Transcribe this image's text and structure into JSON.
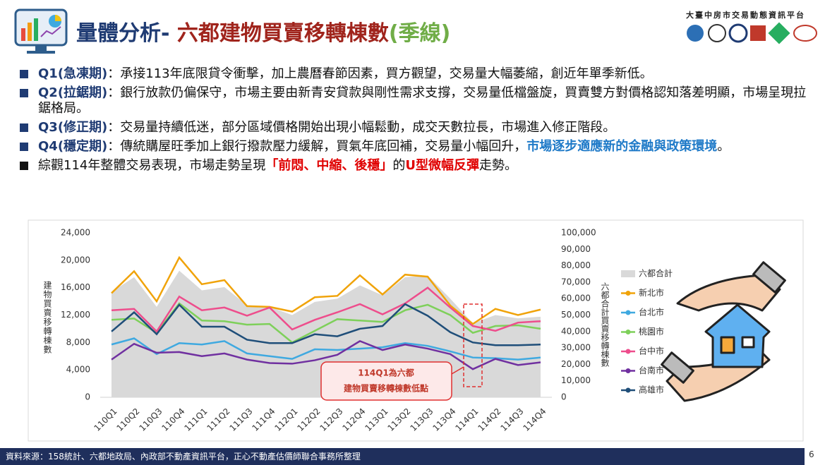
{
  "header": {
    "title_parts": [
      {
        "text": "量體分析- ",
        "color": "#1f3b73"
      },
      {
        "text": "六都建物買賣移轉棟數",
        "color": "#a0241c"
      },
      {
        "text": "(季線)",
        "color": "#70ad47"
      }
    ],
    "platform": "大臺中房市交易動態資訊平台"
  },
  "bullets": [
    {
      "segments": [
        {
          "text": "Q1(急凍期)",
          "style": "label"
        },
        {
          "text": "：承接113年底限貸令衝擊，加上農曆春節因素，買方觀望，交易量大幅萎縮，創近年單季新低。",
          "style": "plain"
        }
      ]
    },
    {
      "segments": [
        {
          "text": "Q2(拉鋸期)",
          "style": "label"
        },
        {
          "text": "：銀行放款仍偏保守，市場主要由新青安貸款與剛性需求支撐，交易量低檔盤旋，買賣雙方對價格認知落差明顯，市場呈現拉鋸格局。",
          "style": "plain"
        }
      ]
    },
    {
      "segments": [
        {
          "text": "Q3(修正期)",
          "style": "label"
        },
        {
          "text": "：交易量持續低迷，部分區域價格開始出現小幅鬆動，成交天數拉長，市場進入修正階段。",
          "style": "plain"
        }
      ]
    },
    {
      "segments": [
        {
          "text": "Q4(穩定期)",
          "style": "label"
        },
        {
          "text": "：傳統購屋旺季加上銀行撥款壓力緩解，買氣年底回補，交易量小幅回升，",
          "style": "plain"
        },
        {
          "text": "市場逐步適應新的金融與政策環境",
          "style": "blue"
        },
        {
          "text": "。",
          "style": "plain"
        }
      ]
    },
    {
      "segments": [
        {
          "text": "綜觀114年整體交易表現，市場走勢呈現",
          "style": "plain"
        },
        {
          "text": "「前悶、中縮、後穩」",
          "style": "red"
        },
        {
          "text": "的",
          "style": "plain"
        },
        {
          "text": "U型微幅反彈",
          "style": "red"
        },
        {
          "text": "走勢。",
          "style": "plain"
        }
      ]
    }
  ],
  "footer": {
    "source": "資料來源：158統計、六都地政局、內政部不動產資訊平台，正心不動產估價師聯合事務所整理",
    "page": 6
  },
  "chart_data": {
    "type": "line",
    "categories": [
      "110Q1",
      "110Q2",
      "110Q3",
      "110Q4",
      "111Q1",
      "111Q2",
      "111Q3",
      "111Q4",
      "112Q1",
      "112Q2",
      "112Q3",
      "112Q4",
      "113Q1",
      "113Q2",
      "113Q3",
      "113Q4",
      "114Q1",
      "114Q2",
      "114Q3",
      "114Q4"
    ],
    "ylabel": "建物買賣移轉棟數",
    "y2label": "六都合計買賣移轉棟數",
    "ylim": [
      0,
      24000
    ],
    "yticks": [
      0,
      {
        "value": 4000,
        "label": "4,000"
      },
      {
        "value": 8000,
        "label": "8,000"
      },
      {
        "value": 12000,
        "label": "12,000"
      },
      {
        "value": 16000,
        "label": "16,000"
      },
      {
        "value": 20000,
        "label": "20,000"
      },
      {
        "value": 24000,
        "label": "24,000"
      }
    ],
    "y2lim": [
      0,
      100000
    ],
    "y2ticks": [
      0,
      {
        "value": 10000,
        "label": "10,000"
      },
      {
        "value": 20000,
        "label": "20,000"
      },
      {
        "value": 30000,
        "label": "30,000"
      },
      {
        "value": 40000,
        "label": "40,000"
      },
      {
        "value": 50000,
        "label": "50,000"
      },
      {
        "value": 60000,
        "label": "60,000"
      },
      {
        "value": 70000,
        "label": "70,000"
      },
      {
        "value": 80000,
        "label": "80,000"
      },
      {
        "value": 90000,
        "label": "90,000"
      },
      {
        "value": 100000,
        "label": "100,000"
      }
    ],
    "grid": false,
    "series": [
      {
        "name": "六都合計",
        "type": "area",
        "axis": "y2",
        "color": "#d9d9d9",
        "values": [
          64000,
          73000,
          55000,
          77000,
          65000,
          67000,
          56000,
          55000,
          50000,
          58000,
          60000,
          68000,
          62000,
          73000,
          74000,
          60000,
          45000,
          50000,
          48000,
          49000
        ]
      },
      {
        "name": "新北市",
        "color": "#f0a30a",
        "values": [
          15200,
          18400,
          14000,
          20400,
          16500,
          17100,
          13300,
          13200,
          12500,
          14600,
          14800,
          17800,
          15000,
          17900,
          17600,
          13400,
          10700,
          12900,
          12000,
          12800
        ]
      },
      {
        "name": "台北市",
        "color": "#3fa9e0",
        "values": [
          7700,
          8600,
          6300,
          7900,
          7700,
          8200,
          6400,
          6000,
          5600,
          7000,
          6900,
          7100,
          7300,
          7900,
          7500,
          6700,
          5800,
          5700,
          5500,
          5800
        ]
      },
      {
        "name": "桃園市",
        "color": "#7ed05a",
        "values": [
          11300,
          11500,
          9400,
          13700,
          11200,
          11100,
          10600,
          10700,
          8000,
          9700,
          11400,
          11200,
          11000,
          12700,
          13500,
          12000,
          9400,
          10400,
          10500,
          10000
        ]
      },
      {
        "name": "台中市",
        "color": "#ee4d8c",
        "values": [
          12700,
          12900,
          9600,
          14700,
          12700,
          13100,
          11900,
          13100,
          9900,
          11300,
          12400,
          13600,
          12100,
          13700,
          16000,
          13100,
          10400,
          9700,
          10900,
          11100
        ]
      },
      {
        "name": "台南市",
        "color": "#7030a0",
        "values": [
          5500,
          7800,
          6500,
          6600,
          6000,
          6400,
          5500,
          5000,
          4900,
          5400,
          6200,
          8200,
          6900,
          7700,
          7100,
          6300,
          4100,
          5600,
          4700,
          5100
        ]
      },
      {
        "name": "高雄市",
        "color": "#1f4e79",
        "values": [
          9600,
          12400,
          9200,
          13500,
          10300,
          10300,
          8400,
          7900,
          7900,
          9200,
          8900,
          10000,
          10400,
          13600,
          11900,
          9500,
          8000,
          7600,
          7600,
          7700
        ]
      }
    ],
    "annotation": {
      "category": 16,
      "lines": [
        "114Q1為六都",
        "建物買賣移轉棟數低點"
      ]
    }
  }
}
